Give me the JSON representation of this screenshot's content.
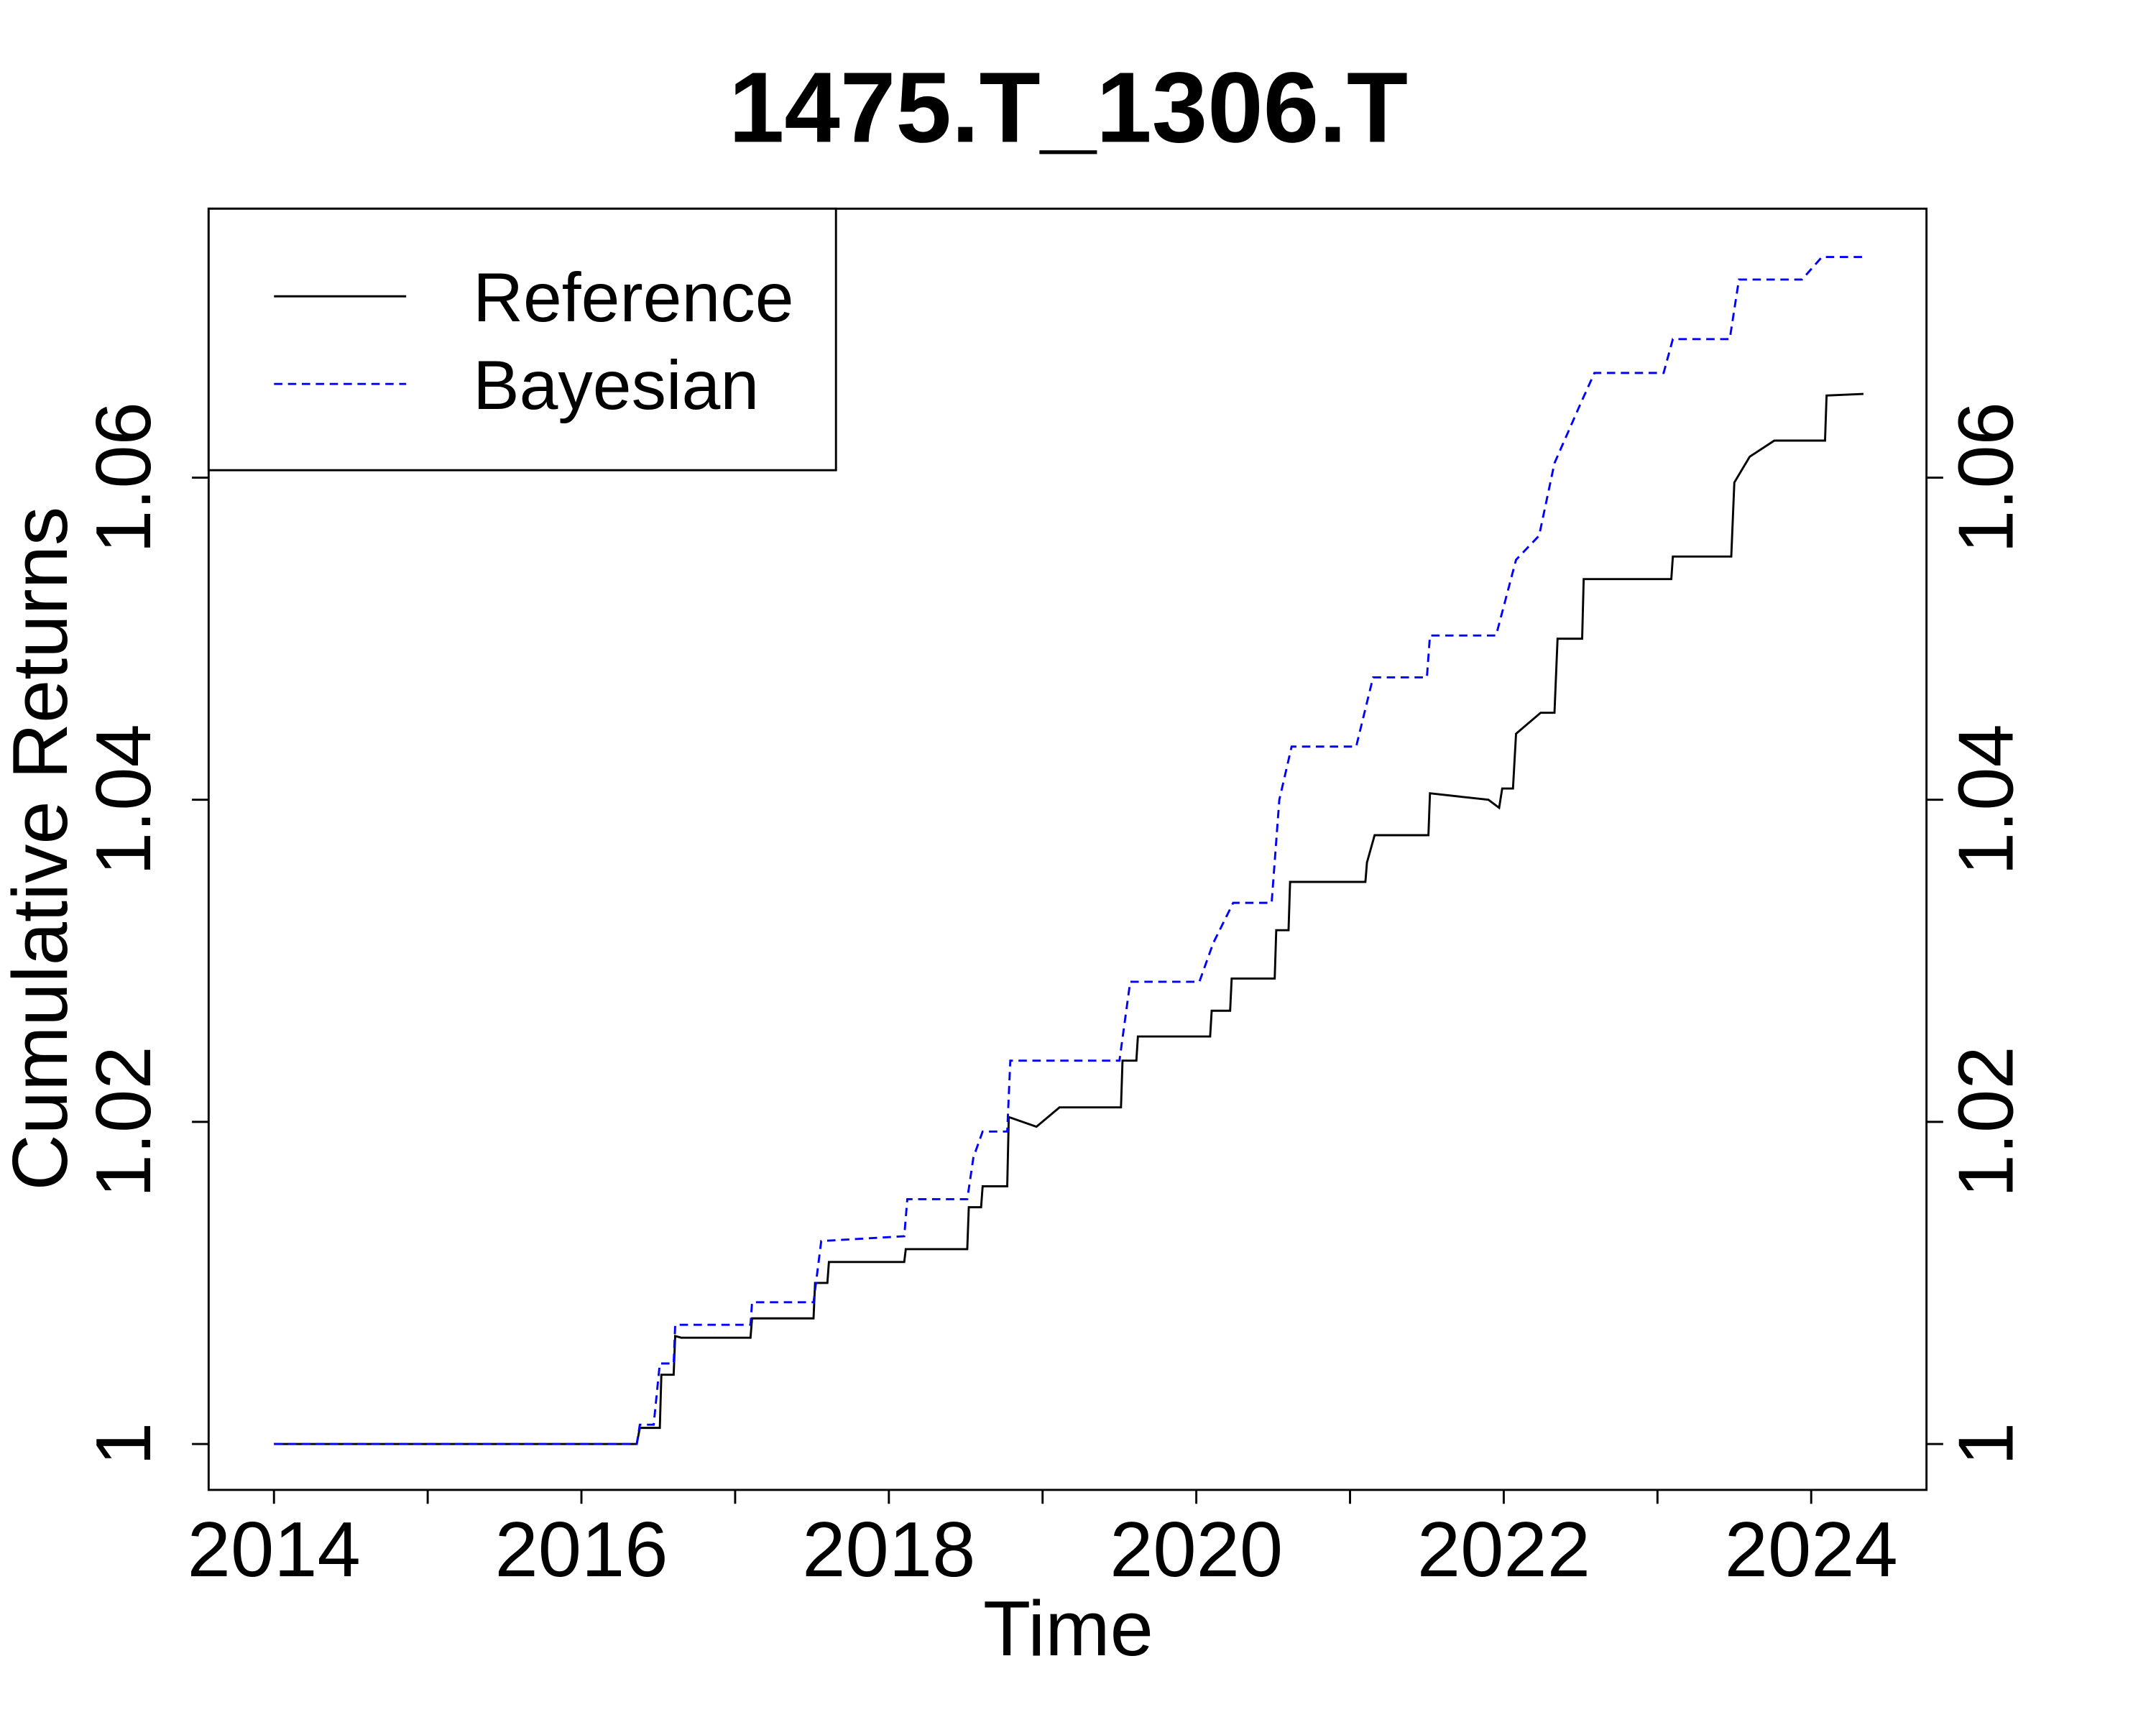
{
  "chart_data": {
    "type": "line",
    "title": "1475.T_1306.T",
    "x_label": "Time",
    "y_label": "Cumulative Returns",
    "xlim": [
      2013.575,
      2024.75
    ],
    "xticks": [
      2014,
      2016,
      2018,
      2020,
      2022,
      2024
    ],
    "xminor_ticks": [
      2015,
      2017,
      2019,
      2021,
      2023
    ],
    "ylim": [
      0.99715,
      1.0767
    ],
    "yticks": [
      1,
      1.02,
      1.04,
      1.06
    ],
    "y2lim": [
      0.99715,
      1.0767
    ],
    "y2ticks": [
      1,
      1.02,
      1.04,
      1.06
    ],
    "legend": "top-left",
    "series": [
      {
        "name": "Reference",
        "color": "#000000",
        "dash": "solid",
        "x": [
          2014,
          2016.36,
          2016.38,
          2016.51,
          2016.52,
          2016.6,
          2016.61,
          2016.65,
          2017.1,
          2017.11,
          2017.51,
          2017.52,
          2017.6,
          2017.61,
          2018.1,
          2018.11,
          2018.51,
          2018.52,
          2018.6,
          2018.61,
          2018.77,
          2018.78,
          2018.96,
          2019.11,
          2019.51,
          2019.52,
          2019.61,
          2019.62,
          2020.09,
          2020.1,
          2020.22,
          2020.23,
          2020.51,
          2020.52,
          2020.6,
          2020.61,
          2021.1,
          2021.11,
          2021.16,
          2021.51,
          2021.52,
          2021.9,
          2021.97,
          2021.99,
          2022.06,
          2022.08,
          2022.24,
          2022.33,
          2022.35,
          2022.51,
          2022.52,
          2023.09,
          2023.1,
          2023.48,
          2023.5,
          2023.6,
          2023.76,
          2024.09,
          2024.1,
          2024.34
        ],
        "values": [
          1,
          1,
          1.001,
          1.001,
          1.0043,
          1.0043,
          1.0067,
          1.0066,
          1.0066,
          1.0078,
          1.0078,
          1.01,
          1.01,
          1.0113,
          1.0113,
          1.0121,
          1.0121,
          1.0147,
          1.0147,
          1.016,
          1.016,
          1.0203,
          1.0197,
          1.0209,
          1.0209,
          1.0238,
          1.0238,
          1.0253,
          1.0253,
          1.0269,
          1.0269,
          1.0289,
          1.0289,
          1.0319,
          1.0319,
          1.0349,
          1.0349,
          1.0361,
          1.0378,
          1.0378,
          1.0404,
          1.04,
          1.0395,
          1.0407,
          1.0407,
          1.0441,
          1.0454,
          1.0454,
          1.05,
          1.05,
          1.0537,
          1.0537,
          1.0551,
          1.0551,
          1.0597,
          1.0613,
          1.0623,
          1.0623,
          1.0651,
          1.0652
        ]
      },
      {
        "name": "Bayesian",
        "color": "#0000ff",
        "dash": "dashed",
        "x": [
          2014,
          2016.36,
          2016.38,
          2016.47,
          2016.51,
          2016.6,
          2016.61,
          2017.1,
          2017.11,
          2017.51,
          2017.56,
          2018.1,
          2018.12,
          2018.51,
          2018.55,
          2018.61,
          2018.77,
          2018.79,
          2019.5,
          2019.57,
          2019.73,
          2020.02,
          2020.11,
          2020.24,
          2020.49,
          2020.54,
          2020.62,
          2021.04,
          2021.15,
          2021.5,
          2021.52,
          2021.95,
          2022.08,
          2022.23,
          2022.33,
          2022.5,
          2022.59,
          2023.04,
          2023.1,
          2023.47,
          2023.53,
          2023.94,
          2024.07,
          2024.34
        ],
        "values": [
          1,
          1,
          1.0012,
          1.0012,
          1.005,
          1.005,
          1.0074,
          1.0074,
          1.0088,
          1.0088,
          1.0126,
          1.0129,
          1.0152,
          1.0152,
          1.0178,
          1.0194,
          1.0194,
          1.0238,
          1.0238,
          1.0287,
          1.0287,
          1.0287,
          1.0311,
          1.0336,
          1.0336,
          1.04,
          1.0433,
          1.0433,
          1.0476,
          1.0476,
          1.0502,
          1.0502,
          1.0549,
          1.0564,
          1.0609,
          1.0646,
          1.0665,
          1.0665,
          1.0686,
          1.0686,
          1.0723,
          1.0723,
          1.0737,
          1.0737
        ]
      }
    ]
  }
}
